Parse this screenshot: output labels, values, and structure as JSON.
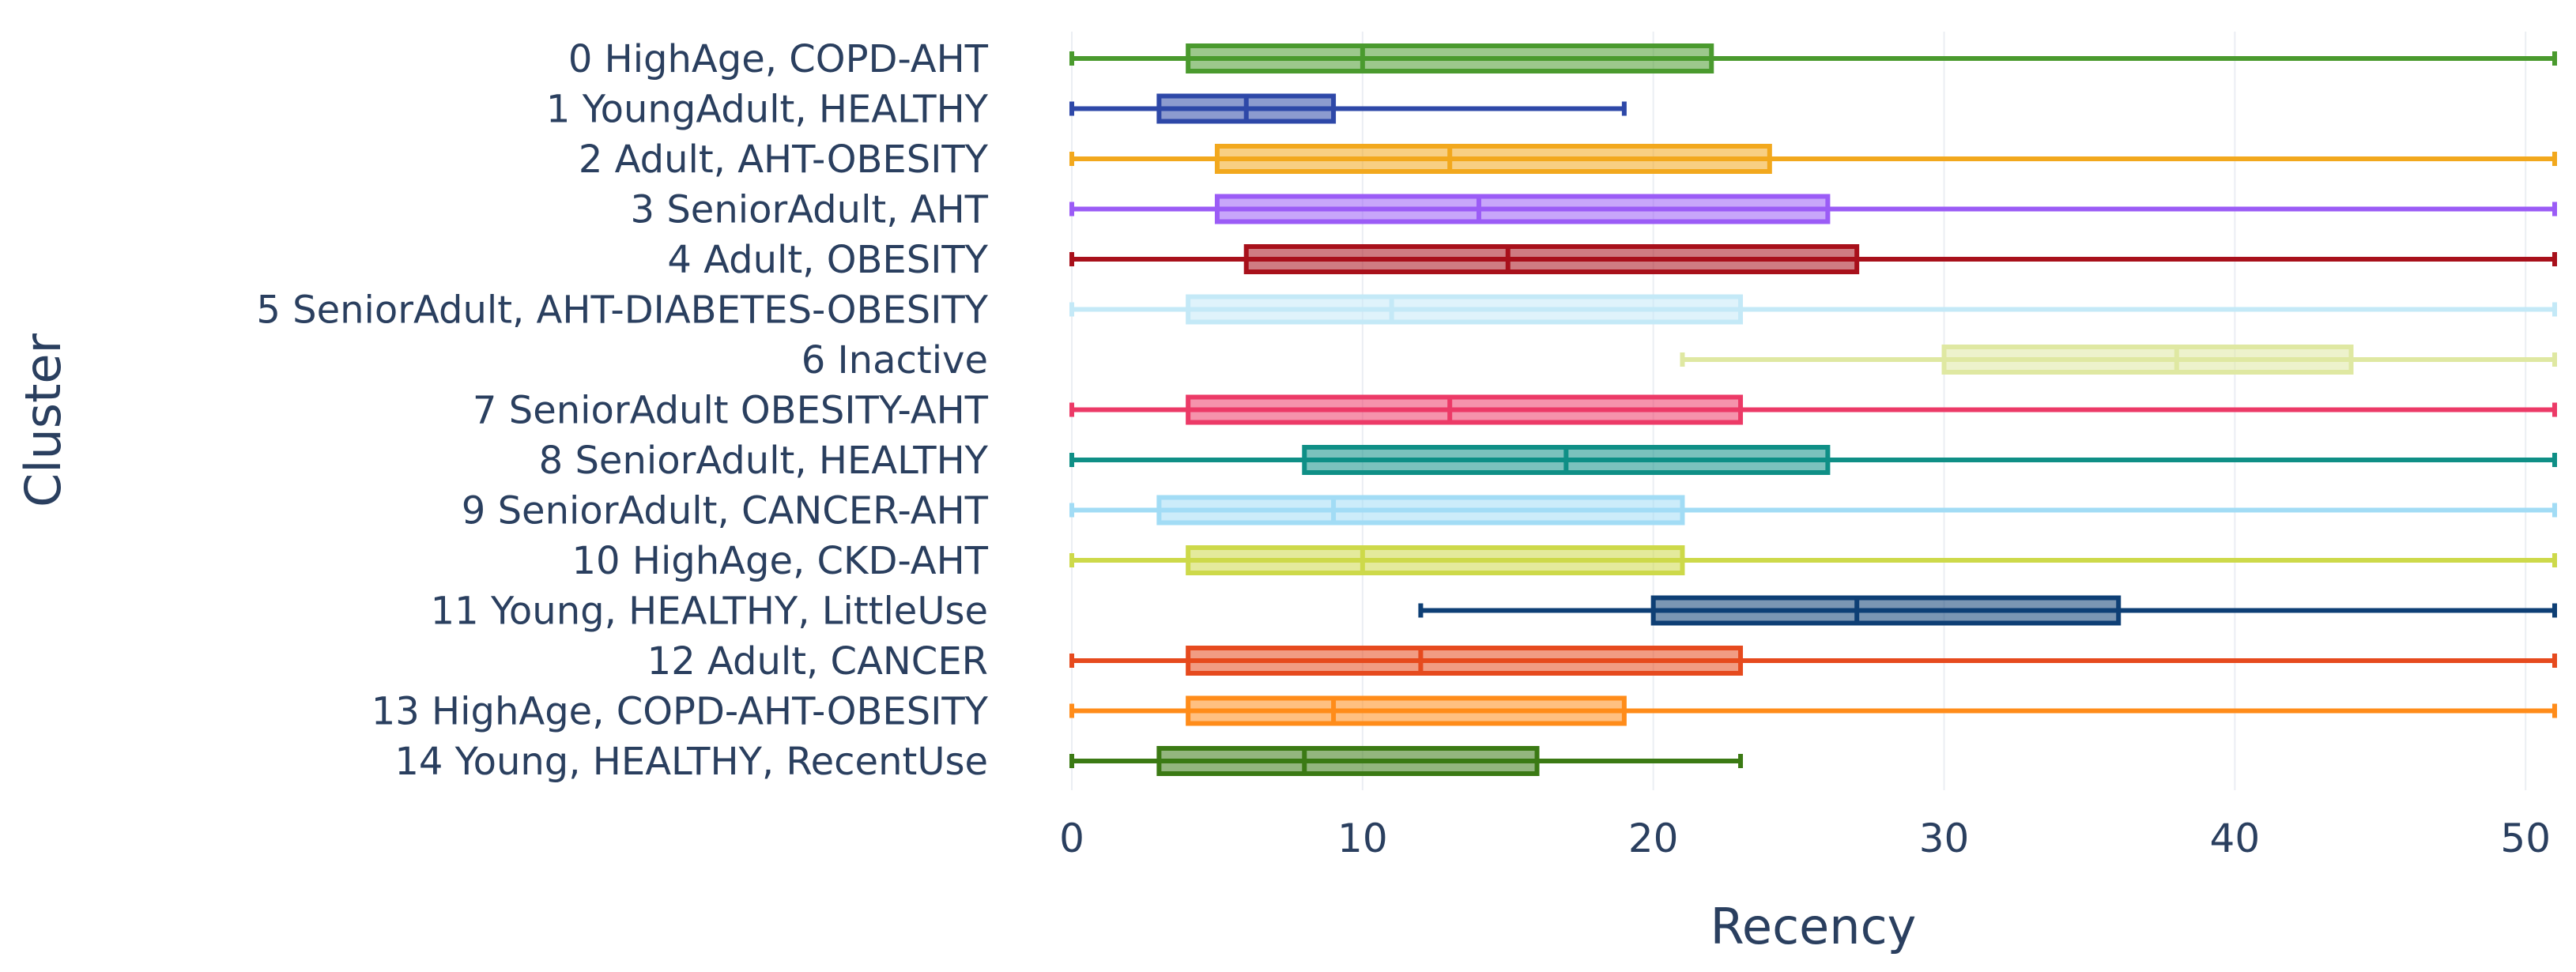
{
  "chart_data": {
    "type": "box",
    "orientation": "horizontal",
    "title": "",
    "xlabel": "Recency",
    "ylabel": "Cluster",
    "xlim": [
      0,
      51
    ],
    "xticks": [
      0,
      10,
      20,
      30,
      40,
      50
    ],
    "grid": true,
    "legend": "none",
    "series": [
      {
        "name": "0 HighAge, COPD-AHT",
        "color": "#4a9a2e",
        "min": 0,
        "q1": 4,
        "median": 10,
        "q3": 22,
        "max": 51
      },
      {
        "name": "1 YoungAdult, HEALTHY",
        "color": "#2e48a8",
        "min": 0,
        "q1": 3,
        "median": 6,
        "q3": 9,
        "max": 19
      },
      {
        "name": "2 Adult, AHT-OBESITY",
        "color": "#f2a81d",
        "min": 0,
        "q1": 5,
        "median": 13,
        "q3": 24,
        "max": 51
      },
      {
        "name": "3 SeniorAdult, AHT",
        "color": "#9b5cf6",
        "min": 0,
        "q1": 5,
        "median": 14,
        "q3": 26,
        "max": 51
      },
      {
        "name": "4 Adult, OBESITY",
        "color": "#a8101b",
        "min": 0,
        "q1": 6,
        "median": 15,
        "q3": 27,
        "max": 51
      },
      {
        "name": "5 SeniorAdult, AHT-DIABETES-OBESITY",
        "color": "#c4e9f7",
        "min": 0,
        "q1": 4,
        "median": 11,
        "q3": 23,
        "max": 51
      },
      {
        "name": "6 Inactive",
        "color": "#dfe8a2",
        "min": 21,
        "q1": 30,
        "median": 38,
        "q3": 44,
        "max": 51
      },
      {
        "name": "7 SeniorAdult OBESITY-AHT",
        "color": "#ec3a67",
        "min": 0,
        "q1": 4,
        "median": 13,
        "q3": 23,
        "max": 51
      },
      {
        "name": "8 SeniorAdult, HEALTHY",
        "color": "#0f8f86",
        "min": 0,
        "q1": 8,
        "median": 17,
        "q3": 26,
        "max": 51
      },
      {
        "name": "9 SeniorAdult, CANCER-AHT",
        "color": "#a2dcf5",
        "min": 0,
        "q1": 3,
        "median": 9,
        "q3": 21,
        "max": 51
      },
      {
        "name": "10 HighAge, CKD-AHT",
        "color": "#cdd94a",
        "min": 0,
        "q1": 4,
        "median": 10,
        "q3": 21,
        "max": 51
      },
      {
        "name": "11 Young, HEALTHY, LittleUse",
        "color": "#0e3f75",
        "min": 12,
        "q1": 20,
        "median": 27,
        "q3": 36,
        "max": 51
      },
      {
        "name": "12 Adult, CANCER",
        "color": "#e64a1e",
        "min": 0,
        "q1": 4,
        "median": 12,
        "q3": 23,
        "max": 51
      },
      {
        "name": "13 HighAge, COPD-AHT-OBESITY",
        "color": "#ff8c1a",
        "min": 0,
        "q1": 4,
        "median": 9,
        "q3": 19,
        "max": 51
      },
      {
        "name": "14 Young, HEALTHY, RecentUse",
        "color": "#3b7a14",
        "min": 0,
        "q1": 3,
        "median": 8,
        "q3": 16,
        "max": 23
      }
    ]
  }
}
